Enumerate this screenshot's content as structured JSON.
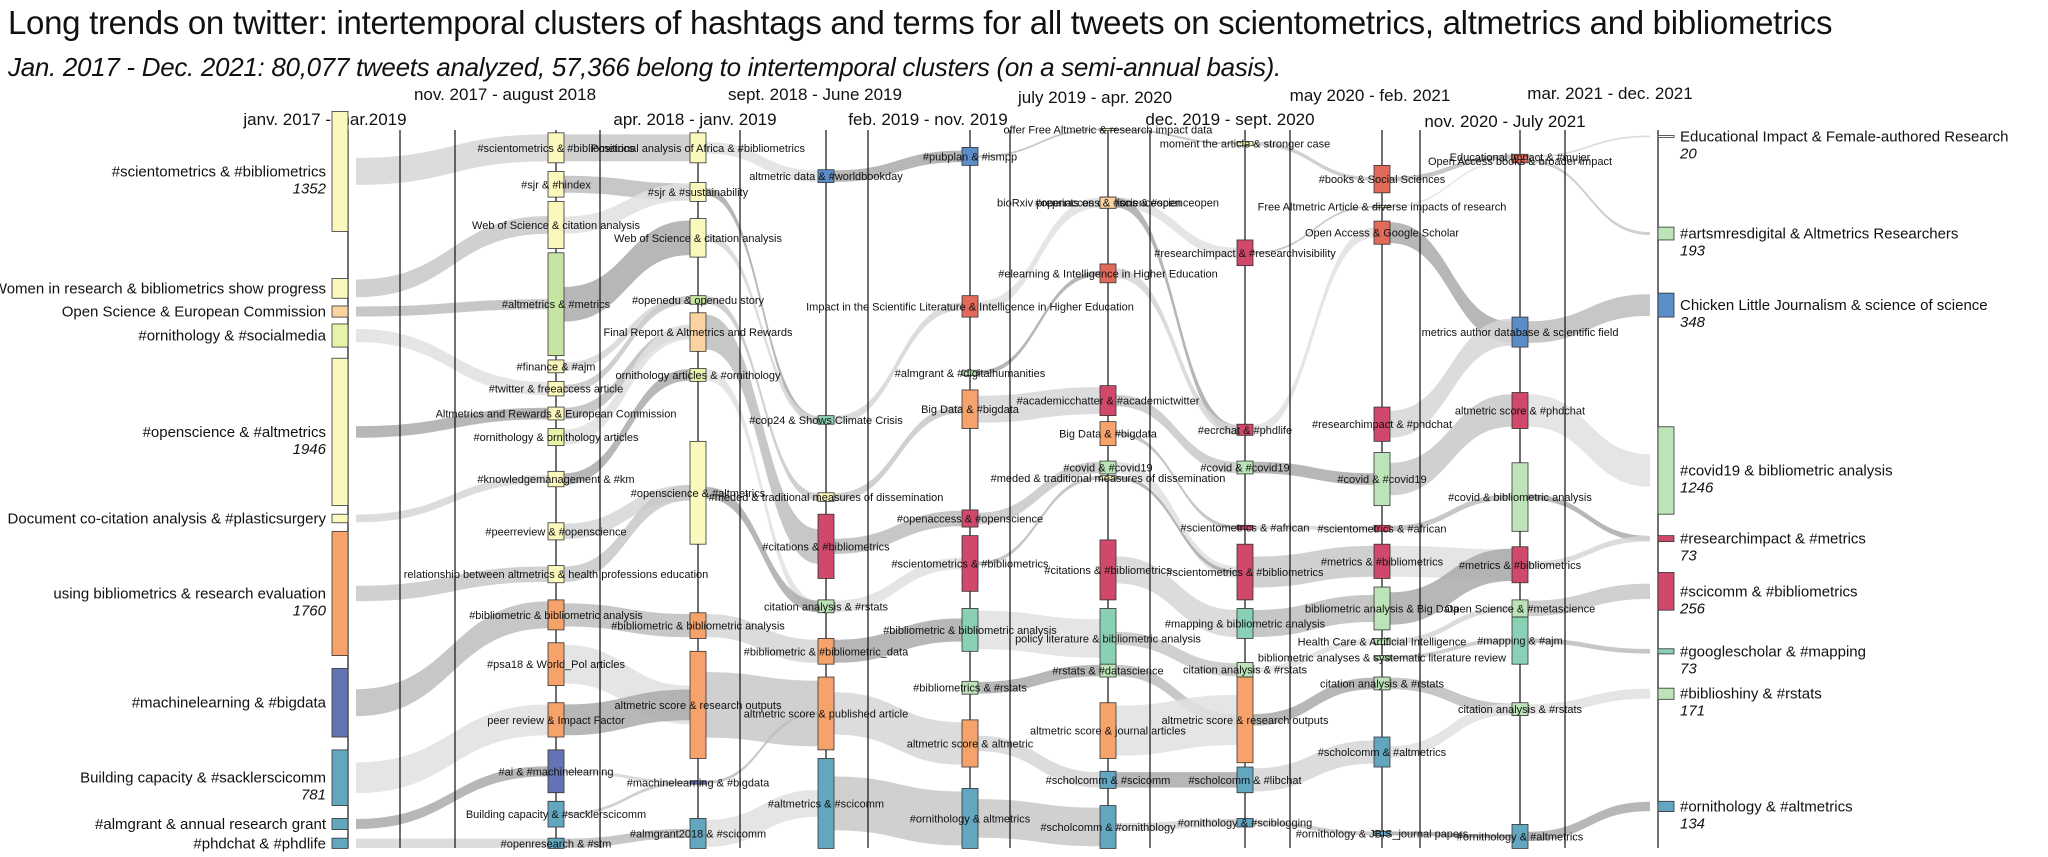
{
  "chart_data": {
    "type": "alluvial",
    "title": "Long trends on twitter: intertemporal clusters of hashtags and terms for all tweets on scientometrics, altmetrics and bibliometrics",
    "subtitle": "Jan. 2017 - Dec. 2021: 80,077 tweets analyzed, 57,366 belong to intertemporal clusters (on a semi-annual basis).",
    "periods": [
      "janv. 2017 - mar.2019",
      "nov. 2017 - august 2018",
      "apr. 2018 - janv. 2019",
      "sept. 2018 - June 2019",
      "feb. 2019 - nov. 2019",
      "july 2019 - apr. 2020",
      "dec. 2019 - sept. 2020",
      "may 2020 - feb. 2021",
      "nov. 2020 - July 2021",
      "mar. 2021 - dec. 2021"
    ],
    "first_period_clusters": [
      {
        "label": "#scientometrics & #bibliometrics",
        "count": "1352",
        "color": "#fbf8be",
        "y0": 0.13,
        "y1": 0.27
      },
      {
        "label": "Women in research & bibliometrics show progress",
        "count": "",
        "color": "#fbf8be",
        "y0": 0.325,
        "y1": 0.348
      },
      {
        "label": "Open Science & European Commission",
        "count": "",
        "color": "#fbd3a0",
        "y0": 0.357,
        "y1": 0.37
      },
      {
        "label": "#ornithology & #socialmedia",
        "count": "",
        "color": "#e8f2a8",
        "y0": 0.378,
        "y1": 0.405
      },
      {
        "label": "#openscience & #altmetrics",
        "count": "1946",
        "color": "#fbf8be",
        "y0": 0.418,
        "y1": 0.59
      },
      {
        "label": "Document co-citation analysis & #plasticsurgery",
        "count": "",
        "color": "#fbf8be",
        "y0": 0.6,
        "y1": 0.61
      },
      {
        "label": "using bibliometrics & research evaluation",
        "count": "1760",
        "color": "#f5a26b",
        "y0": 0.62,
        "y1": 0.765
      },
      {
        "label": "#machinelearning & #bigdata",
        "count": "",
        "color": "#6473b3",
        "y0": 0.78,
        "y1": 0.86
      },
      {
        "label": "Building capacity & #sacklerscicomm",
        "count": "781",
        "color": "#63a6c0",
        "y0": 0.875,
        "y1": 0.94
      },
      {
        "label": "#almgrant & annual research grant",
        "count": "",
        "color": "#63a6c0",
        "y0": 0.955,
        "y1": 0.968
      },
      {
        "label": "#phdchat & #phdlife",
        "count": "",
        "color": "#63a6c0",
        "y0": 0.978,
        "y1": 0.99
      }
    ],
    "last_period_clusters": [
      {
        "label": "Educational Impact & Female-authored Research",
        "count": "20",
        "color": "#ffffff",
        "y0": 0.158,
        "y1": 0.16
      },
      {
        "label": "#artsmresdigital & Altmetrics Researchers",
        "count": "193",
        "color": "#bde4b8",
        "y0": 0.265,
        "y1": 0.28
      },
      {
        "label": "Chicken Little Journalism & science of science",
        "count": "348",
        "color": "#5b8ec9",
        "y0": 0.342,
        "y1": 0.37
      },
      {
        "label": "#covid19 & bibliometric analysis",
        "count": "1246",
        "color": "#bde4b8",
        "y0": 0.498,
        "y1": 0.6
      },
      {
        "label": "#researchimpact & #metrics",
        "count": "73",
        "color": "#d0486a",
        "y0": 0.625,
        "y1": 0.632
      },
      {
        "label": "#scicomm & #bibliometrics",
        "count": "256",
        "color": "#d0486a",
        "y0": 0.668,
        "y1": 0.712
      },
      {
        "label": "#googlescholar & #mapping",
        "count": "73",
        "color": "#8ad0b4",
        "y0": 0.757,
        "y1": 0.763
      },
      {
        "label": "#biblioshiny & #rstats",
        "count": "171",
        "color": "#bde4b8",
        "y0": 0.803,
        "y1": 0.816
      },
      {
        "label": "#ornithology & #altmetrics",
        "count": "134",
        "color": "#63a6c0",
        "y0": 0.935,
        "y1": 0.947
      }
    ],
    "inner_clusters": [
      {
        "label": "#scientometrics & #bibliometrics",
        "col": 1,
        "color": "#fbf8be",
        "y0": 0.155,
        "y1": 0.19
      },
      {
        "label": "#sjr & #hindex",
        "col": 1,
        "color": "#fbf8be",
        "y0": 0.2,
        "y1": 0.23
      },
      {
        "label": "Web of Science & citation analysis",
        "col": 1,
        "color": "#fbf8be",
        "y0": 0.235,
        "y1": 0.29
      },
      {
        "label": "#altmetrics & #metrics",
        "col": 1,
        "color": "#c6e5a3",
        "y0": 0.295,
        "y1": 0.415
      },
      {
        "label": "#finance & #ajm",
        "col": 1,
        "color": "#fbf8be",
        "y0": 0.42,
        "y1": 0.435
      },
      {
        "label": "#twitter & freeaccess article",
        "col": 1,
        "color": "#fbf8be",
        "y0": 0.445,
        "y1": 0.462
      },
      {
        "label": "Altmetrics and Rewards & European Commission",
        "col": 1,
        "color": "#fbf8be",
        "y0": 0.475,
        "y1": 0.49
      },
      {
        "label": "#ornithology & ornithology articles",
        "col": 1,
        "color": "#e8f2a8",
        "y0": 0.5,
        "y1": 0.52
      },
      {
        "label": "#knowledgemanagement & #km",
        "col": 1,
        "color": "#fbf8be",
        "y0": 0.55,
        "y1": 0.568
      },
      {
        "label": "#peerreview & #openscience",
        "col": 1,
        "color": "#fbf8be",
        "y0": 0.61,
        "y1": 0.63
      },
      {
        "label": "relationship between altmetrics & health professions education",
        "col": 1,
        "color": "#fbf8be",
        "y0": 0.66,
        "y1": 0.68
      },
      {
        "label": "#bibliometric & bibliometric analysis",
        "col": 1,
        "color": "#f5a26b",
        "y0": 0.7,
        "y1": 0.735
      },
      {
        "label": "#psa18 & World_Pol articles",
        "col": 1,
        "color": "#f5a26b",
        "y0": 0.75,
        "y1": 0.8
      },
      {
        "label": "peer review & Impact Factor",
        "col": 1,
        "color": "#f5a26b",
        "y0": 0.82,
        "y1": 0.86
      },
      {
        "label": "#ai & #machinelearning",
        "col": 1,
        "color": "#6473b3",
        "y0": 0.875,
        "y1": 0.925
      },
      {
        "label": "Building capacity & #sacklerscicomm",
        "col": 1,
        "color": "#63a6c0",
        "y0": 0.935,
        "y1": 0.965
      },
      {
        "label": "#openresearch & #stm",
        "col": 1,
        "color": "#63a6c0",
        "y0": 0.978,
        "y1": 0.99
      },
      {
        "label": "Positional analysis of Africa & #bibliometrics",
        "col": 2,
        "color": "#fbf8be",
        "y0": 0.155,
        "y1": 0.19
      },
      {
        "label": "#sjr & #sustainability",
        "col": 2,
        "color": "#fbf8be",
        "y0": 0.213,
        "y1": 0.235
      },
      {
        "label": "Web of Science & citation analysis",
        "col": 2,
        "color": "#fbf8be",
        "y0": 0.255,
        "y1": 0.3
      },
      {
        "label": "#openedu & openedu story",
        "col": 2,
        "color": "#c6e5a3",
        "y0": 0.345,
        "y1": 0.355
      },
      {
        "label": "Final Report & Altmetrics and Rewards",
        "col": 2,
        "color": "#fbd3a0",
        "y0": 0.365,
        "y1": 0.41
      },
      {
        "label": "ornithology articles & #ornithology",
        "col": 2,
        "color": "#e8f2a8",
        "y0": 0.43,
        "y1": 0.445
      },
      {
        "label": "#openscience & #altmetrics",
        "col": 2,
        "color": "#fbf8be",
        "y0": 0.515,
        "y1": 0.635
      },
      {
        "label": "#bibliometric & bibliometric analysis",
        "col": 2,
        "color": "#f5a26b",
        "y0": 0.715,
        "y1": 0.745
      },
      {
        "label": "altmetric score & research outputs",
        "col": 2,
        "color": "#f5a26b",
        "y0": 0.76,
        "y1": 0.885
      },
      {
        "label": "#machinelearning & #bigdata",
        "col": 2,
        "color": "#6473b3",
        "y0": 0.911,
        "y1": 0.915
      },
      {
        "label": "#almgrant2018 & #scicomm",
        "col": 2,
        "color": "#63a6c0",
        "y0": 0.955,
        "y1": 0.99
      },
      {
        "label": "altmetric data & #worldbookday",
        "col": 3,
        "color": "#5b8ec9",
        "y0": 0.198,
        "y1": 0.213
      },
      {
        "label": "#cop24 & Shows Climate Crisis",
        "col": 3,
        "color": "#8ad0b4",
        "y0": 0.485,
        "y1": 0.495
      },
      {
        "label": "#meded & traditional measures of dissemination",
        "col": 3,
        "color": "#fbf8be",
        "y0": 0.575,
        "y1": 0.585
      },
      {
        "label": "#citations & #bibliometrics",
        "col": 3,
        "color": "#d0486a",
        "y0": 0.6,
        "y1": 0.675
      },
      {
        "label": "citation analysis & #rstats",
        "col": 3,
        "color": "#bde4b8",
        "y0": 0.7,
        "y1": 0.715
      },
      {
        "label": "#bibliometric & #bibliometric_data",
        "col": 3,
        "color": "#f5a26b",
        "y0": 0.745,
        "y1": 0.775
      },
      {
        "label": "altmetric score & published article",
        "col": 3,
        "color": "#f5a26b",
        "y0": 0.79,
        "y1": 0.875
      },
      {
        "label": "#altmetrics & #scicomm",
        "col": 3,
        "color": "#63a6c0",
        "y0": 0.885,
        "y1": 0.99
      },
      {
        "label": "#pubplan & #ismpp",
        "col": 4,
        "color": "#5b8ec9",
        "y0": 0.172,
        "y1": 0.193
      },
      {
        "label": "Impact in the Scientific Literature & Intelligence in Higher Education",
        "col": 4,
        "color": "#e16a5a",
        "y0": 0.345,
        "y1": 0.37
      },
      {
        "label": "#almgrant & #digitalhumanities",
        "col": 4,
        "color": "#bde4b8",
        "y0": 0.432,
        "y1": 0.438
      },
      {
        "label": "Big Data & #bigdata",
        "col": 4,
        "color": "#f5a26b",
        "y0": 0.455,
        "y1": 0.5
      },
      {
        "label": "#openaccess & #openscience",
        "col": 4,
        "color": "#d0486a",
        "y0": 0.595,
        "y1": 0.615
      },
      {
        "label": "#scientometrics & #bibliometrics",
        "col": 4,
        "color": "#d0486a",
        "y0": 0.625,
        "y1": 0.69
      },
      {
        "label": "#bibliometric & bibliometric analysis",
        "col": 4,
        "color": "#8ad0b4",
        "y0": 0.71,
        "y1": 0.76
      },
      {
        "label": "#bibliometrics & #rstats",
        "col": 4,
        "color": "#bde4b8",
        "y0": 0.795,
        "y1": 0.81
      },
      {
        "label": "altmetric score & altmetric",
        "col": 4,
        "color": "#f5a26b",
        "y0": 0.84,
        "y1": 0.895
      },
      {
        "label": "#ornithology & altmetrics",
        "col": 4,
        "color": "#63a6c0",
        "y0": 0.92,
        "y1": 0.99
      },
      {
        "label": "offer Free Altmetric & research impact data",
        "col": 5,
        "color": "#fbf8be",
        "y0": 0.15,
        "y1": 0.152
      },
      {
        "label": "bioRxiv preprints on citations & #scienceopen",
        "col": 5,
        "color": "#fbd3a0",
        "y0": 0.23,
        "y1": 0.243
      },
      {
        "label": "#openaccess & #scienceopen",
        "col": 5,
        "color": "#fbd3a0",
        "y0": 0.23,
        "y1": 0.243
      },
      {
        "label": "#elearning & Intelligence in Higher Education",
        "col": 5,
        "color": "#e16a5a",
        "y0": 0.308,
        "y1": 0.33
      },
      {
        "label": "#academicchatter & #academictwitter",
        "col": 5,
        "color": "#d0486a",
        "y0": 0.45,
        "y1": 0.485
      },
      {
        "label": "Big Data & #bigdata",
        "col": 5,
        "color": "#f5a26b",
        "y0": 0.492,
        "y1": 0.52
      },
      {
        "label": "#covid & #covid19",
        "col": 5,
        "color": "#bde4b8",
        "y0": 0.538,
        "y1": 0.553
      },
      {
        "label": "#meded & traditional measures of dissemination",
        "col": 5,
        "color": "#fbf8be",
        "y0": 0.555,
        "y1": 0.56
      },
      {
        "label": "#citations & #bibliometrics",
        "col": 5,
        "color": "#d0486a",
        "y0": 0.63,
        "y1": 0.7
      },
      {
        "label": "policy literature & bibliometric analysis",
        "col": 5,
        "color": "#8ad0b4",
        "y0": 0.71,
        "y1": 0.78
      },
      {
        "label": "#rstats & #datascience",
        "col": 5,
        "color": "#bde4b8",
        "y0": 0.775,
        "y1": 0.79
      },
      {
        "label": "altmetric score & journal articles",
        "col": 5,
        "color": "#f5a26b",
        "y0": 0.82,
        "y1": 0.885
      },
      {
        "label": "#scholcomm & #scicomm",
        "col": 5,
        "color": "#63a6c0",
        "y0": 0.9,
        "y1": 0.92
      },
      {
        "label": "#scholcomm & #ornithology",
        "col": 5,
        "color": "#63a6c0",
        "y0": 0.94,
        "y1": 0.99
      },
      {
        "label": "moment the article & stronger case",
        "col": 6,
        "color": "#fbf8be",
        "y0": 0.165,
        "y1": 0.17
      },
      {
        "label": "#researchimpact & #researchvisibility",
        "col": 6,
        "color": "#d0486a",
        "y0": 0.28,
        "y1": 0.31
      },
      {
        "label": "#ecrchat & #phdlife",
        "col": 6,
        "color": "#d0486a",
        "y0": 0.495,
        "y1": 0.508
      },
      {
        "label": "#covid & #covid19",
        "col": 6,
        "color": "#bde4b8",
        "y0": 0.538,
        "y1": 0.553
      },
      {
        "label": "#scientometrics & #african",
        "col": 6,
        "color": "#d0486a",
        "y0": 0.613,
        "y1": 0.618
      },
      {
        "label": "#scientometrics & #bibliometrics",
        "col": 6,
        "color": "#d0486a",
        "y0": 0.635,
        "y1": 0.7
      },
      {
        "label": "#mapping & bibliometric analysis",
        "col": 6,
        "color": "#8ad0b4",
        "y0": 0.71,
        "y1": 0.745
      },
      {
        "label": "citation analysis & #rstats",
        "col": 6,
        "color": "#bde4b8",
        "y0": 0.773,
        "y1": 0.79
      },
      {
        "label": "altmetric score & research outputs",
        "col": 6,
        "color": "#f5a26b",
        "y0": 0.79,
        "y1": 0.89
      },
      {
        "label": "#scholcomm & #libchat",
        "col": 6,
        "color": "#63a6c0",
        "y0": 0.895,
        "y1": 0.925
      },
      {
        "label": "#ornithology & #sciblogging",
        "col": 6,
        "color": "#63a6c0",
        "y0": 0.955,
        "y1": 0.965
      },
      {
        "label": "Educational Impact & #mujer",
        "col": 8,
        "color": "#e16a5a",
        "y0": 0.18,
        "y1": 0.186
      },
      {
        "label": "#books & Social Sciences",
        "col": 7,
        "color": "#e16a5a",
        "y0": 0.193,
        "y1": 0.225
      },
      {
        "label": "Free Altmetric Article & diverse impacts of research",
        "col": 7,
        "color": "#fbf8be",
        "y0": 0.24,
        "y1": 0.242
      },
      {
        "label": "Open Access & Google Scholar",
        "col": 7,
        "color": "#e16a5a",
        "y0": 0.258,
        "y1": 0.285
      },
      {
        "label": "#researchimpact & #phdchat",
        "col": 7,
        "color": "#d0486a",
        "y0": 0.475,
        "y1": 0.515
      },
      {
        "label": "#covid & #covid19",
        "col": 7,
        "color": "#bde4b8",
        "y0": 0.528,
        "y1": 0.59
      },
      {
        "label": "#scientometrics & #african",
        "col": 7,
        "color": "#d0486a",
        "y0": 0.613,
        "y1": 0.62
      },
      {
        "label": "#metrics & #bibliometrics",
        "col": 7,
        "color": "#d0486a",
        "y0": 0.635,
        "y1": 0.675
      },
      {
        "label": "bibliometric analysis & Big Data",
        "col": 7,
        "color": "#bde4b8",
        "y0": 0.685,
        "y1": 0.735
      },
      {
        "label": "Health Care & Artificial Intelligence",
        "col": 7,
        "color": "#bde4b8",
        "y0": 0.745,
        "y1": 0.752
      },
      {
        "label": "bibliometric analyses & systematic literature review",
        "col": 7,
        "color": "#bde4b8",
        "y0": 0.765,
        "y1": 0.77
      },
      {
        "label": "citation analysis & #rstats",
        "col": 7,
        "color": "#bde4b8",
        "y0": 0.79,
        "y1": 0.805
      },
      {
        "label": "#scholcomm & #altmetrics",
        "col": 7,
        "color": "#63a6c0",
        "y0": 0.86,
        "y1": 0.895
      },
      {
        "label": "#ornithology & JBIS_journal papers",
        "col": 7,
        "color": "#63a6c0",
        "y0": 0.97,
        "y1": 0.975
      },
      {
        "label": "Open Access books & broader impact",
        "col": 8,
        "color": "#e16a5a",
        "y0": 0.186,
        "y1": 0.19
      },
      {
        "label": "metrics author database & scientific field",
        "col": 8,
        "color": "#5b8ec9",
        "y0": 0.37,
        "y1": 0.405
      },
      {
        "label": "altmetric score & #phdchat",
        "col": 8,
        "color": "#d0486a",
        "y0": 0.458,
        "y1": 0.5
      },
      {
        "label": "#covid & bibliometric analysis",
        "col": 8,
        "color": "#bde4b8",
        "y0": 0.54,
        "y1": 0.62
      },
      {
        "label": "#metrics & #bibliometrics",
        "col": 8,
        "color": "#d0486a",
        "y0": 0.638,
        "y1": 0.68
      },
      {
        "label": "Open Science & #metascience",
        "col": 8,
        "color": "#bde4b8",
        "y0": 0.7,
        "y1": 0.72
      },
      {
        "label": "#mapping & #ajm",
        "col": 8,
        "color": "#8ad0b4",
        "y0": 0.72,
        "y1": 0.775
      },
      {
        "label": "citation analysis & #rstats",
        "col": 8,
        "color": "#bde4b8",
        "y0": 0.82,
        "y1": 0.835
      },
      {
        "label": "#ornithology & #altmetrics",
        "col": 8,
        "color": "#63a6c0",
        "y0": 0.962,
        "y1": 0.99
      }
    ]
  }
}
